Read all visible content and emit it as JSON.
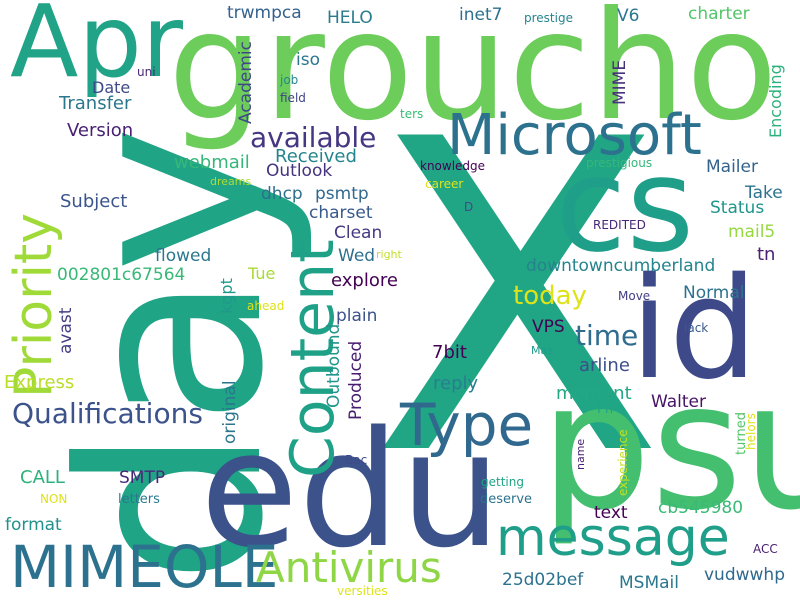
{
  "word_cloud": {
    "words": [
      {
        "text": "X",
        "color": "#21a685"
      },
      {
        "text": "day",
        "color": "#20a486"
      },
      {
        "text": "groucho",
        "color": "#6ccd5a"
      },
      {
        "text": "psu",
        "color": "#44bf70"
      },
      {
        "text": "edu",
        "color": "#3b528b"
      },
      {
        "text": "cs",
        "color": "#1f9e89"
      },
      {
        "text": "id",
        "color": "#3e4989"
      },
      {
        "text": "Apr",
        "color": "#20a386"
      },
      {
        "text": "Microsoft",
        "color": "#2c728e"
      },
      {
        "text": "Priority",
        "color": "#a0da39"
      },
      {
        "text": "Content",
        "color": "#1fa187"
      },
      {
        "text": "Type",
        "color": "#31688e"
      },
      {
        "text": "message",
        "color": "#1f9e89"
      },
      {
        "text": "MIMEOLE",
        "color": "#2c728e"
      },
      {
        "text": "Antivirus",
        "color": "#8ed645"
      },
      {
        "text": "Qualifications",
        "color": "#3b528b"
      },
      {
        "text": "available",
        "color": "#453781"
      },
      {
        "text": "today",
        "color": "#dde318"
      },
      {
        "text": "time",
        "color": "#2f6c8e"
      },
      {
        "text": "Received",
        "color": "#25858e"
      },
      {
        "text": "Outlook",
        "color": "#46337e"
      },
      {
        "text": "webmail",
        "color": "#35b779"
      },
      {
        "text": "Version",
        "color": "#482173"
      },
      {
        "text": "Transfer",
        "color": "#2a788e"
      },
      {
        "text": "Date",
        "color": "#3e4a89"
      },
      {
        "text": "Subject",
        "color": "#39558c"
      },
      {
        "text": "Academic",
        "color": "#3f4788"
      },
      {
        "text": "iso",
        "color": "#2a768e"
      },
      {
        "text": "HELO",
        "color": "#287c8e"
      },
      {
        "text": "trwmpca",
        "color": "#34618d"
      },
      {
        "text": "inet7",
        "color": "#2d708e"
      },
      {
        "text": "prestige",
        "color": "#25858e"
      },
      {
        "text": "V6",
        "color": "#2a788e"
      },
      {
        "text": "charter",
        "color": "#52c569"
      },
      {
        "text": "MIME",
        "color": "#46327e"
      },
      {
        "text": "Encoding",
        "color": "#2db27d"
      },
      {
        "text": "uni",
        "color": "#482878"
      },
      {
        "text": "job",
        "color": "#23888e"
      },
      {
        "text": "field",
        "color": "#404387"
      },
      {
        "text": "ters",
        "color": "#3aba76"
      },
      {
        "text": "knowledge",
        "color": "#440154"
      },
      {
        "text": "prestigious",
        "color": "#35b779"
      },
      {
        "text": "career",
        "color": "#dde318"
      },
      {
        "text": "dreams",
        "color": "#addc30"
      },
      {
        "text": "Mailer",
        "color": "#33638d"
      },
      {
        "text": "Take",
        "color": "#2c738e"
      },
      {
        "text": "Status",
        "color": "#1f958b"
      },
      {
        "text": "mail5",
        "color": "#95d840"
      },
      {
        "text": "tn",
        "color": "#482173"
      },
      {
        "text": "D",
        "color": "#3e4989"
      },
      {
        "text": "REDITED",
        "color": "#482677"
      },
      {
        "text": "dhcp",
        "color": "#2d708e"
      },
      {
        "text": "psmtp",
        "color": "#31688e"
      },
      {
        "text": "charset",
        "color": "#375a8c"
      },
      {
        "text": "Clean",
        "color": "#453882"
      },
      {
        "text": "Wed",
        "color": "#2e6f8e"
      },
      {
        "text": "right",
        "color": "#c2df23"
      },
      {
        "text": "flowed",
        "color": "#2a778e"
      },
      {
        "text": "Tue",
        "color": "#a8db34"
      },
      {
        "text": "002801c67564",
        "color": "#38b977"
      },
      {
        "text": "kgpt",
        "color": "#1f988b"
      },
      {
        "text": "explore",
        "color": "#440154"
      },
      {
        "text": "downtowncumberland",
        "color": "#25838e"
      },
      {
        "text": "Normal",
        "color": "#2c728e"
      },
      {
        "text": "avast",
        "color": "#433e85"
      },
      {
        "text": "plain",
        "color": "#3b528b"
      },
      {
        "text": "ahead",
        "color": "#dde318"
      },
      {
        "text": "Move",
        "color": "#424086"
      },
      {
        "text": "VPS",
        "color": "#440154"
      },
      {
        "text": "lack",
        "color": "#38598c"
      },
      {
        "text": "Express",
        "color": "#bade28"
      },
      {
        "text": "original",
        "color": "#2a768e"
      },
      {
        "text": "Outbound",
        "color": "#1f958b"
      },
      {
        "text": "Produced",
        "color": "#481d6f"
      },
      {
        "text": "7bit",
        "color": "#440154"
      },
      {
        "text": "arline",
        "color": "#3d4e8a"
      },
      {
        "text": "reply",
        "color": "#277f8e"
      },
      {
        "text": "Mas",
        "color": "#1f9a8a"
      },
      {
        "text": "moment",
        "color": "#22a884"
      },
      {
        "text": "Walter",
        "color": "#471365"
      },
      {
        "text": "Ph",
        "color": "#20a486"
      },
      {
        "text": "turned",
        "color": "#52c569"
      },
      {
        "text": "helors",
        "color": "#dde318"
      },
      {
        "text": "experience",
        "color": "#c2df23"
      },
      {
        "text": "name",
        "color": "#482173"
      },
      {
        "text": "CALL",
        "color": "#2db27d"
      },
      {
        "text": "SMTP",
        "color": "#482878"
      },
      {
        "text": "Bac",
        "color": "#3e4a89"
      },
      {
        "text": "NON",
        "color": "#dde318"
      },
      {
        "text": "letters",
        "color": "#2a788e"
      },
      {
        "text": "getting",
        "color": "#20a386"
      },
      {
        "text": "deserve",
        "color": "#2c728e"
      },
      {
        "text": "cb545980",
        "color": "#3aba76"
      },
      {
        "text": "text",
        "color": "#440154"
      },
      {
        "text": "format",
        "color": "#21918c"
      },
      {
        "text": "25d02bef",
        "color": "#2c728e"
      },
      {
        "text": "MSMail",
        "color": "#2a778e"
      },
      {
        "text": "vudwwhp",
        "color": "#30698e"
      },
      {
        "text": "ACC",
        "color": "#481d6f"
      },
      {
        "text": "versities",
        "color": "#dde318"
      }
    ]
  }
}
